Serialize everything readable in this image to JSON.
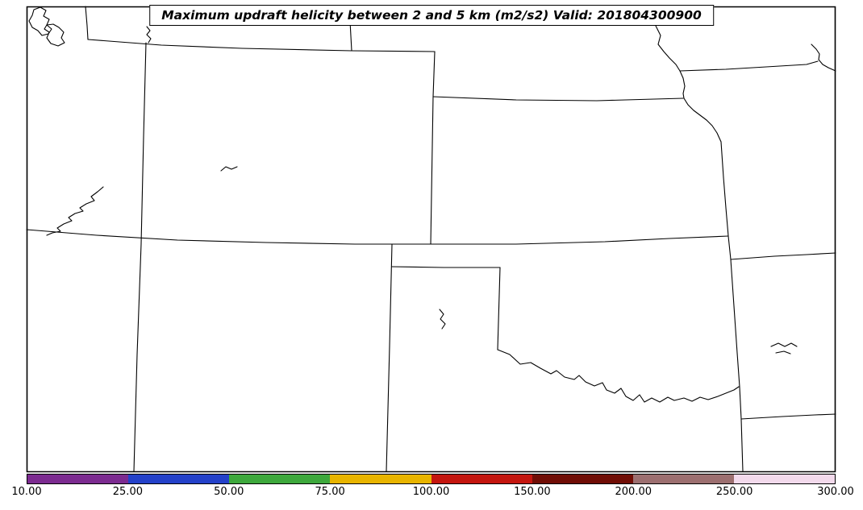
{
  "title": {
    "text": "Maximum updraft helicity between 2 and 5 km (m2/s2) Valid: 201804300900"
  },
  "colorbar": {
    "units": "m2/s2",
    "levels": [
      10,
      25,
      50,
      75,
      100,
      150,
      200,
      250,
      300
    ],
    "tick_labels": [
      "10.00",
      "25.00",
      "50.00",
      "75.00",
      "100.00",
      "150.00",
      "200.00",
      "250.00",
      "300.00"
    ],
    "segment_colors": [
      "#7C2B90",
      "#2441C9",
      "#3DA83C",
      "#E8B400",
      "#C4160F",
      "#700D05",
      "#9C6F70",
      "#F3DAEC"
    ]
  },
  "map": {
    "background_color": "#ffffff",
    "line_color": "#000000"
  },
  "chart_data": {
    "type": "heatmap",
    "title": "Maximum updraft helicity between 2 and 5 km (m2/s2) Valid: 201804300900",
    "colorbar_levels": [
      10,
      25,
      50,
      75,
      100,
      150,
      200,
      250,
      300
    ],
    "colorbar_colors": [
      "#7C2B90",
      "#2441C9",
      "#3DA83C",
      "#E8B400",
      "#C4160F",
      "#700D05",
      "#9C6F70",
      "#F3DAEC"
    ],
    "visible_field_values": "no shaded helicity values above the 10 m2/s2 minimum contour are visible; map area is blank except state borders and lakes"
  }
}
